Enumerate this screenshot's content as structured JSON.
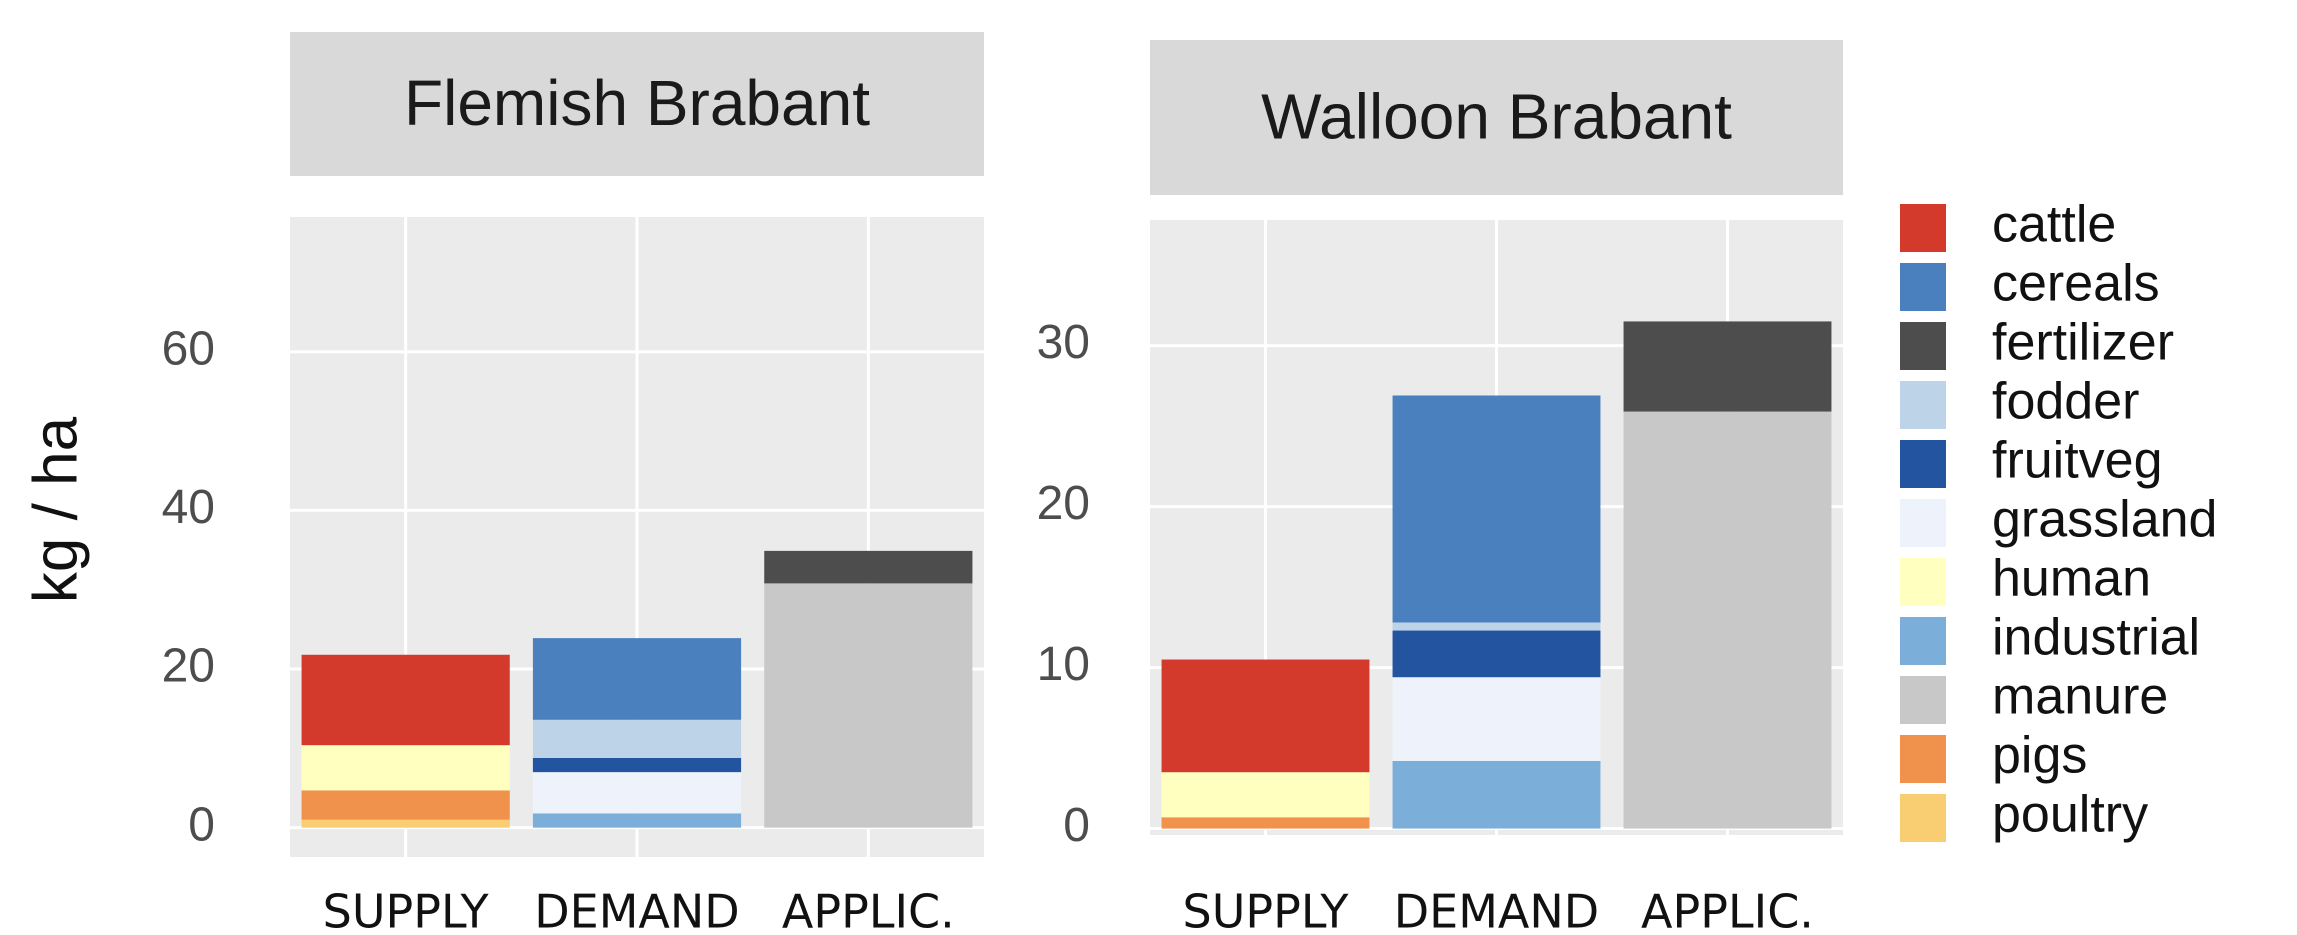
{
  "chart_data": {
    "type": "bar",
    "stacked": true,
    "ylabel": "kg / ha",
    "categories": [
      "SUPPLY",
      "DEMAND",
      "APPLIC."
    ],
    "series": [
      {
        "name": "cattle",
        "color": "#d43a2b"
      },
      {
        "name": "cereals",
        "color": "#4a80bd"
      },
      {
        "name": "fertilizer",
        "color": "#4d4d4d"
      },
      {
        "name": "fodder",
        "color": "#bdd3e8"
      },
      {
        "name": "fruitveg",
        "color": "#2354a0"
      },
      {
        "name": "grassland",
        "color": "#eef3fb"
      },
      {
        "name": "human",
        "color": "#ffffbf"
      },
      {
        "name": "industrial",
        "color": "#7bafd9"
      },
      {
        "name": "manure",
        "color": "#c8c8c8"
      },
      {
        "name": "pigs",
        "color": "#f0924b"
      },
      {
        "name": "poultry",
        "color": "#f9cd71"
      }
    ],
    "facets": [
      {
        "title": "Flemish Brabant",
        "ylim": [
          -3.7,
          77
        ],
        "yticks": [
          0,
          20,
          40,
          60
        ],
        "values": [
          [
            11.4,
            0,
            0
          ],
          [
            0,
            10.3,
            0
          ],
          [
            0,
            0,
            4.1
          ],
          [
            0,
            4.8,
            0
          ],
          [
            0,
            1.8,
            0
          ],
          [
            0,
            5.2,
            0
          ],
          [
            5.7,
            0,
            0
          ],
          [
            0,
            1.8,
            0
          ],
          [
            0,
            0,
            30.8
          ],
          [
            3.7,
            0,
            0
          ],
          [
            1,
            0,
            0
          ]
        ]
      },
      {
        "title": "Walloon Brabant",
        "ylim": [
          -0.4,
          37.8
        ],
        "yticks": [
          0,
          10,
          20,
          30
        ],
        "values": [
          [
            7.0,
            0,
            0
          ],
          [
            0,
            14.1,
            0
          ],
          [
            0,
            0,
            5.6
          ],
          [
            0,
            0.5,
            0
          ],
          [
            0,
            2.9,
            0
          ],
          [
            0,
            5.2,
            0
          ],
          [
            2.8,
            0,
            0
          ],
          [
            0,
            4.2,
            0
          ],
          [
            0,
            0,
            25.9
          ],
          [
            0.7,
            0,
            0
          ],
          [
            0,
            0,
            0
          ]
        ]
      }
    ]
  }
}
